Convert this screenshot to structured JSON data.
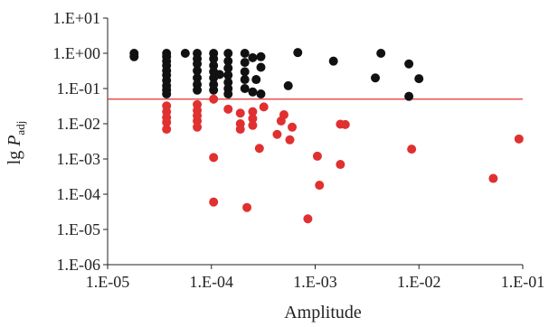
{
  "chart_data": {
    "type": "scatter",
    "title": "",
    "xlabel": "Amplitude",
    "ylabel_main": "lg ",
    "ylabel_var": "P",
    "ylabel_sub": "adj",
    "x_log": true,
    "y_log": true,
    "xlim": [
      1e-05,
      0.1
    ],
    "ylim": [
      1e-06,
      10
    ],
    "x_ticks": [
      {
        "value": 1e-05,
        "label": "1.E-05"
      },
      {
        "value": 0.0001,
        "label": "1.E-04"
      },
      {
        "value": 0.001,
        "label": "1.E-03"
      },
      {
        "value": 0.01,
        "label": "1.E-02"
      },
      {
        "value": 0.1,
        "label": "1.E-01"
      }
    ],
    "y_ticks": [
      {
        "value": 1e-06,
        "label": "1.E-06"
      },
      {
        "value": 1e-05,
        "label": "1.E-05"
      },
      {
        "value": 0.0001,
        "label": "1.E-04"
      },
      {
        "value": 0.001,
        "label": "1.E-03"
      },
      {
        "value": 0.01,
        "label": "1.E-02"
      },
      {
        "value": 0.1,
        "label": "1.E-01"
      },
      {
        "value": 1,
        "label": "1.E+00"
      },
      {
        "value": 10,
        "label": "1.E+01"
      }
    ],
    "grid": false,
    "threshold": {
      "y": 0.05,
      "color": "#e03030"
    },
    "series": [
      {
        "color": "#111111",
        "points": [
          [
            1.8e-05,
            1.0
          ],
          [
            1.8e-05,
            0.8
          ],
          [
            3.7e-05,
            1.0
          ],
          [
            3.7e-05,
            0.8
          ],
          [
            3.7e-05,
            0.6
          ],
          [
            3.7e-05,
            0.45
          ],
          [
            3.7e-05,
            0.32
          ],
          [
            3.7e-05,
            0.24
          ],
          [
            3.7e-05,
            0.17
          ],
          [
            3.7e-05,
            0.12
          ],
          [
            3.7e-05,
            0.09
          ],
          [
            3.7e-05,
            0.07
          ],
          [
            5.6e-05,
            1.0
          ],
          [
            7.3e-05,
            1.0
          ],
          [
            7.3e-05,
            0.7
          ],
          [
            7.3e-05,
            0.5
          ],
          [
            7.3e-05,
            0.32
          ],
          [
            7.3e-05,
            0.2
          ],
          [
            7.3e-05,
            0.13
          ],
          [
            7.3e-05,
            0.09
          ],
          [
            0.000105,
            1.0
          ],
          [
            0.000105,
            0.7
          ],
          [
            0.000105,
            0.45
          ],
          [
            0.000105,
            0.3
          ],
          [
            0.000105,
            0.2
          ],
          [
            0.000105,
            0.13
          ],
          [
            0.000105,
            0.09
          ],
          [
            0.00012,
            0.25
          ],
          [
            0.000145,
            1.0
          ],
          [
            0.000145,
            0.6
          ],
          [
            0.000145,
            0.38
          ],
          [
            0.000145,
            0.24
          ],
          [
            0.000145,
            0.15
          ],
          [
            0.000145,
            0.1
          ],
          [
            0.000145,
            0.07
          ],
          [
            0.00021,
            1.0
          ],
          [
            0.00021,
            0.55
          ],
          [
            0.00021,
            0.3
          ],
          [
            0.00021,
            0.18
          ],
          [
            0.00021,
            0.1
          ],
          [
            0.00025,
            0.75
          ],
          [
            0.00025,
            0.08
          ],
          [
            0.00027,
            0.18
          ],
          [
            0.0003,
            0.8
          ],
          [
            0.0003,
            0.4
          ],
          [
            0.0003,
            0.07
          ],
          [
            0.00055,
            0.12
          ],
          [
            0.00068,
            1.05
          ],
          [
            0.0015,
            0.6
          ],
          [
            0.0038,
            0.2
          ],
          [
            0.0043,
            1.0
          ],
          [
            0.008,
            0.5
          ],
          [
            0.008,
            0.06
          ],
          [
            0.01,
            0.19
          ]
        ]
      },
      {
        "color": "#e03030",
        "points": [
          [
            3.7e-05,
            0.032
          ],
          [
            3.7e-05,
            0.022
          ],
          [
            3.7e-05,
            0.015
          ],
          [
            3.7e-05,
            0.011
          ],
          [
            3.7e-05,
            0.007
          ],
          [
            7.3e-05,
            0.035
          ],
          [
            7.3e-05,
            0.024
          ],
          [
            7.3e-05,
            0.017
          ],
          [
            7.3e-05,
            0.012
          ],
          [
            7.3e-05,
            0.008
          ],
          [
            0.000105,
            0.05
          ],
          [
            0.000105,
            0.0011
          ],
          [
            0.000105,
            6e-05
          ],
          [
            0.000145,
            0.026
          ],
          [
            0.00019,
            0.02
          ],
          [
            0.00019,
            0.01
          ],
          [
            0.00019,
            0.007
          ],
          [
            0.00022,
            4.2e-05
          ],
          [
            0.00025,
            0.022
          ],
          [
            0.00025,
            0.014
          ],
          [
            0.00025,
            0.009
          ],
          [
            0.00029,
            0.002
          ],
          [
            0.00032,
            0.03
          ],
          [
            0.00043,
            0.005
          ],
          [
            0.00047,
            0.012
          ],
          [
            0.0005,
            0.018
          ],
          [
            0.00057,
            0.0035
          ],
          [
            0.0006,
            0.008
          ],
          [
            0.00085,
            2e-05
          ],
          [
            0.00105,
            0.0012
          ],
          [
            0.0011,
            0.00018
          ],
          [
            0.00175,
            0.0007
          ],
          [
            0.00175,
            0.0097
          ],
          [
            0.00195,
            0.0095
          ],
          [
            0.0085,
            0.0019
          ],
          [
            0.052,
            0.00028
          ],
          [
            0.092,
            0.0037
          ]
        ]
      }
    ]
  }
}
